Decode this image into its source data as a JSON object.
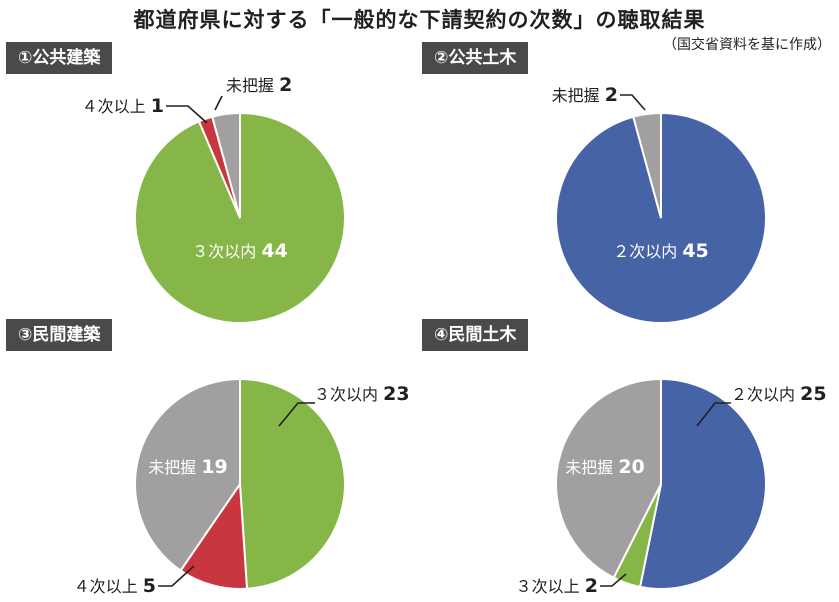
{
  "title": "都道府県に対する「一般的な下請契約の次数」の聴取結果",
  "subtitle": "（国交省資料を基に作成）",
  "colors": {
    "green": "#86b548",
    "blue": "#4563a5",
    "gray": "#a19f9f",
    "red": "#c8363f"
  },
  "chart_data": [
    {
      "type": "pie",
      "title": "①公共建築",
      "slices": [
        {
          "label": "３次以内",
          "value": 44,
          "color": "#86b548"
        },
        {
          "label": "４次以上",
          "value": 1,
          "color": "#c8363f"
        },
        {
          "label": "未把握",
          "value": 2,
          "color": "#a19f9f"
        }
      ]
    },
    {
      "type": "pie",
      "title": "②公共土木",
      "slices": [
        {
          "label": "２次以内",
          "value": 45,
          "color": "#4563a5"
        },
        {
          "label": "未把握",
          "value": 2,
          "color": "#a19f9f"
        }
      ]
    },
    {
      "type": "pie",
      "title": "③民間建築",
      "slices": [
        {
          "label": "３次以内",
          "value": 23,
          "color": "#86b548"
        },
        {
          "label": "４次以上",
          "value": 5,
          "color": "#c8363f"
        },
        {
          "label": "未把握",
          "value": 19,
          "color": "#a19f9f"
        }
      ]
    },
    {
      "type": "pie",
      "title": "④民間土木",
      "slices": [
        {
          "label": "２次以内",
          "value": 25,
          "color": "#4563a5"
        },
        {
          "label": "３次以上",
          "value": 2,
          "color": "#86b548"
        },
        {
          "label": "未把握",
          "value": 20,
          "color": "#a19f9f"
        }
      ]
    }
  ]
}
